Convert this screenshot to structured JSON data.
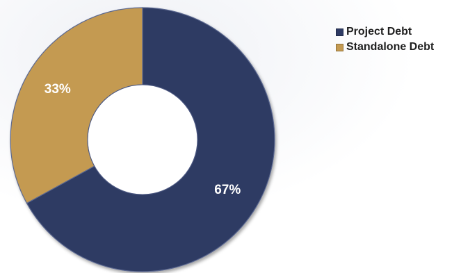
{
  "chart_data": {
    "type": "pie",
    "subtype": "donut",
    "title": "",
    "categories": [
      "Project Debt",
      "Standalone Debt"
    ],
    "values": [
      67,
      33
    ],
    "value_labels": [
      "67%",
      "33%"
    ],
    "colors": [
      "#2d3a63",
      "#c49a51"
    ],
    "legend_position": "top-right",
    "start_angle_deg": 0,
    "direction": "clockwise"
  }
}
